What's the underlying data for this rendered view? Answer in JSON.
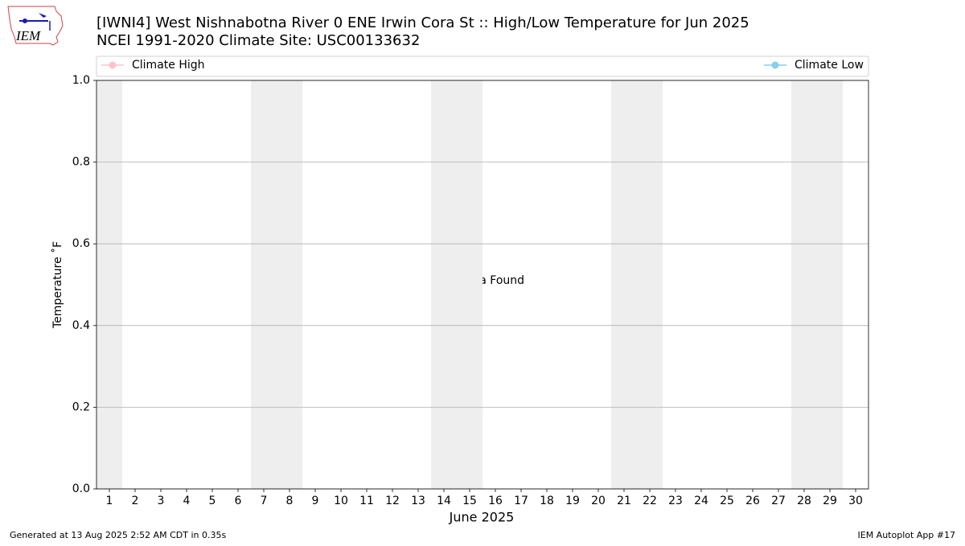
{
  "chart_data": {
    "type": "line",
    "title": "[IWNI4] West Nishnabotna River 0 ENE Irwin Cora St :: High/Low Temperature for Jun 2025",
    "subtitle": "NCEI 1991-2020 Climate Site: USC00133632",
    "xlabel": "June 2025",
    "ylabel": "Temperature ˚F",
    "annotation": "No Data Found",
    "logo_text": "IEM",
    "footer_left": "Generated at 13 Aug 2025 2:52 AM CDT in 0.35s",
    "footer_right": "IEM Autoplot App #17",
    "xlim": [
      0.5,
      30.5
    ],
    "xticks": [
      1,
      2,
      3,
      4,
      5,
      6,
      7,
      8,
      9,
      10,
      11,
      12,
      13,
      14,
      15,
      16,
      17,
      18,
      19,
      20,
      21,
      22,
      23,
      24,
      25,
      26,
      27,
      28,
      29,
      30
    ],
    "ylim": [
      0,
      1
    ],
    "yticks": [
      {
        "value": 0,
        "label": "0.0"
      },
      {
        "value": 0.2,
        "label": "0.2"
      },
      {
        "value": 0.4,
        "label": "0.4"
      },
      {
        "value": 0.6,
        "label": "0.6"
      },
      {
        "value": 0.8,
        "label": "0.8"
      },
      {
        "value": 1,
        "label": "1.0"
      }
    ],
    "grid": true,
    "weekend_spans": [
      [
        0.5,
        1.5
      ],
      [
        6.5,
        8.5
      ],
      [
        13.5,
        15.5
      ],
      [
        20.5,
        22.5
      ],
      [
        27.5,
        29.5
      ]
    ],
    "weekend_color": "#eeeeee",
    "series": [
      {
        "name": "Climate High",
        "color": "#ffc0cb",
        "values": []
      },
      {
        "name": "Climate Low",
        "color": "#87ceeb",
        "values": []
      }
    ]
  }
}
